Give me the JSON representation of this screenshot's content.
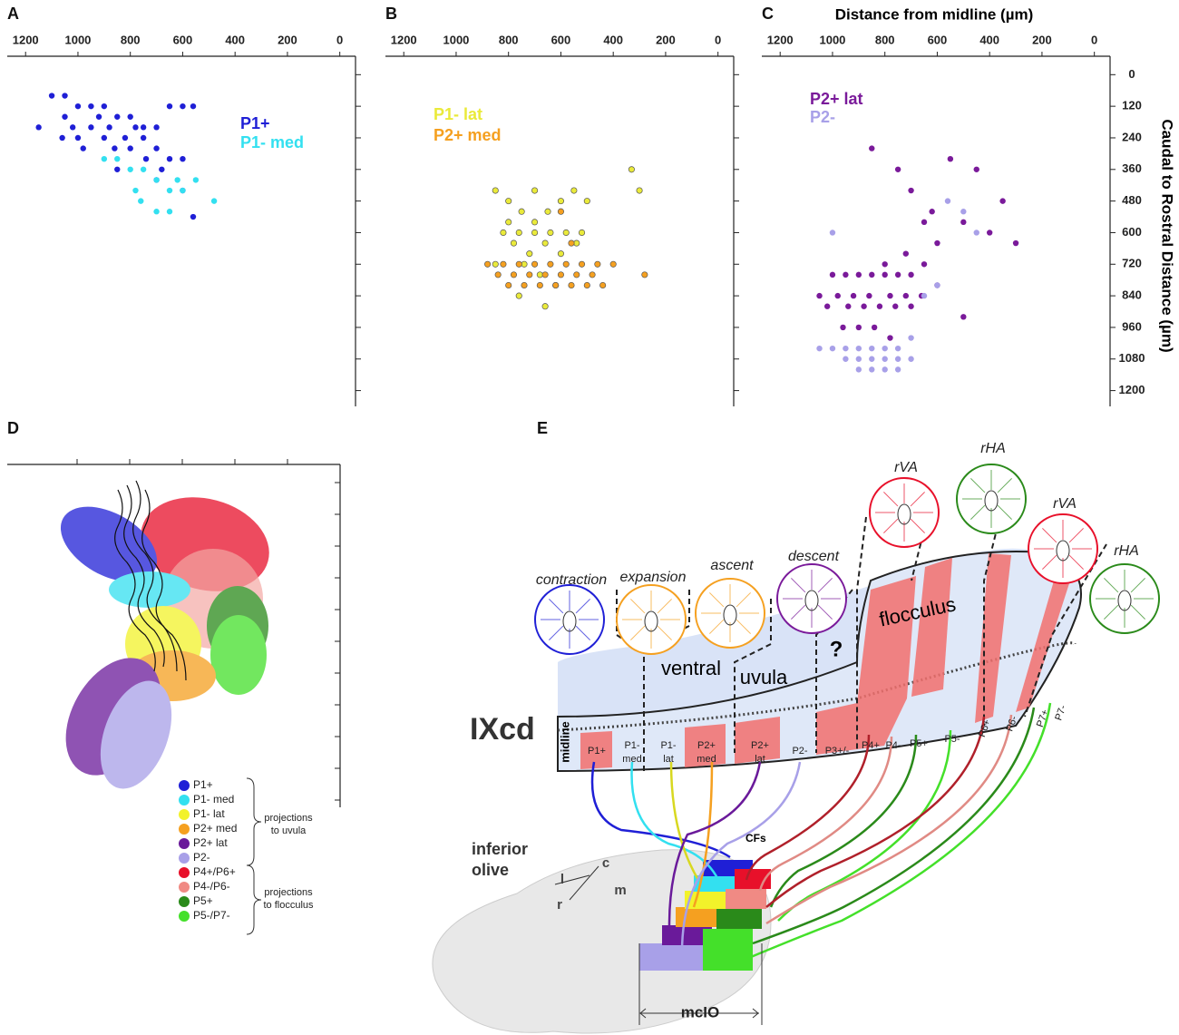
{
  "chart_data": [
    {
      "type": "scatter",
      "panel": "A",
      "xlim": [
        1270,
        -60
      ],
      "ylim": [
        -70,
        1260
      ],
      "xticks": [
        1200,
        1000,
        800,
        600,
        400,
        200,
        0
      ],
      "yticks": [
        0,
        120,
        240,
        360,
        480,
        600,
        720,
        840,
        960,
        1080,
        1200
      ],
      "ytick_labels": false,
      "series": [
        {
          "name": "P1+",
          "color": "#1f1fd6",
          "x": [
            1100,
            1050,
            1000,
            950,
            900,
            850,
            800,
            750,
            700,
            650,
            600,
            560,
            1150,
            1000,
            900,
            800,
            700,
            650,
            600,
            850,
            700,
            600,
            560,
            1050,
            950,
            750,
            1020,
            920,
            880,
            820,
            780,
            1060,
            980,
            860,
            740,
            680
          ],
          "y": [
            80,
            80,
            120,
            120,
            120,
            160,
            160,
            200,
            200,
            120,
            120,
            120,
            200,
            240,
            240,
            280,
            280,
            320,
            320,
            360,
            400,
            440,
            540,
            160,
            200,
            240,
            200,
            160,
            200,
            240,
            200,
            240,
            280,
            280,
            320,
            360
          ]
        },
        {
          "name": "P1- med",
          "color": "#33e0f0",
          "x": [
            850,
            800,
            750,
            700,
            650,
            600,
            760,
            700,
            650,
            480,
            550,
            900,
            780,
            620
          ],
          "y": [
            320,
            360,
            360,
            400,
            440,
            440,
            480,
            520,
            520,
            480,
            400,
            320,
            440,
            400
          ]
        }
      ]
    },
    {
      "type": "scatter",
      "panel": "B",
      "xlim": [
        1270,
        -60
      ],
      "ylim": [
        -70,
        1260
      ],
      "xticks": [
        1200,
        1000,
        800,
        600,
        400,
        200,
        0
      ],
      "yticks": [
        0,
        120,
        240,
        360,
        480,
        600,
        720,
        840,
        960,
        1080,
        1200
      ],
      "ytick_labels": false,
      "series": [
        {
          "name": "P1- lat",
          "color": "#eaea3a",
          "x": [
            850,
            800,
            750,
            700,
            650,
            600,
            550,
            500,
            330,
            300,
            820,
            760,
            700,
            640,
            580,
            520,
            780,
            720,
            660,
            600,
            540,
            850,
            740,
            680,
            620,
            800,
            700,
            760,
            660
          ],
          "y": [
            440,
            480,
            520,
            560,
            520,
            480,
            440,
            480,
            360,
            440,
            600,
            600,
            600,
            600,
            600,
            600,
            640,
            680,
            640,
            680,
            640,
            720,
            720,
            760,
            800,
            560,
            440,
            840,
            880
          ]
        },
        {
          "name": "P2+ med",
          "color": "#f5a020",
          "x": [
            880,
            820,
            760,
            700,
            640,
            580,
            520,
            460,
            400,
            280,
            840,
            780,
            720,
            660,
            600,
            540,
            480,
            800,
            740,
            680,
            620,
            560,
            500,
            440,
            600,
            560
          ],
          "y": [
            720,
            720,
            720,
            720,
            720,
            720,
            720,
            720,
            720,
            760,
            760,
            760,
            760,
            760,
            760,
            760,
            760,
            800,
            800,
            800,
            800,
            800,
            800,
            800,
            520,
            640
          ]
        }
      ]
    },
    {
      "type": "scatter",
      "panel": "C",
      "title": "Distance from midline (µm)",
      "y_label": "Caudal to Rostral Distance (µm)",
      "xlim": [
        1270,
        -60
      ],
      "ylim": [
        -70,
        1260
      ],
      "xticks": [
        1200,
        1000,
        800,
        600,
        400,
        200,
        0
      ],
      "yticks": [
        0,
        120,
        240,
        360,
        480,
        600,
        720,
        840,
        960,
        1080,
        1200
      ],
      "ytick_labels": true,
      "series": [
        {
          "name": "P2+ lat",
          "color": "#7a1a9a",
          "x": [
            850,
            750,
            550,
            450,
            700,
            650,
            600,
            500,
            400,
            300,
            350,
            620,
            720,
            800,
            1000,
            950,
            900,
            850,
            800,
            750,
            700,
            650,
            1050,
            980,
            920,
            860,
            780,
            720,
            660,
            600,
            1020,
            940,
            880,
            820,
            760,
            700,
            500,
            960,
            900,
            840,
            780
          ],
          "y": [
            280,
            360,
            320,
            360,
            440,
            560,
            640,
            560,
            600,
            640,
            480,
            520,
            680,
            720,
            760,
            760,
            760,
            760,
            760,
            760,
            760,
            720,
            840,
            840,
            840,
            840,
            840,
            840,
            840,
            800,
            880,
            880,
            880,
            880,
            880,
            880,
            920,
            960,
            960,
            960,
            1000
          ]
        },
        {
          "name": "P2-",
          "color": "#a8a0e8",
          "x": [
            1050,
            1000,
            950,
            900,
            850,
            800,
            750,
            700,
            950,
            900,
            850,
            800,
            750,
            700,
            900,
            850,
            800,
            750,
            560,
            500,
            450,
            1000,
            650,
            600
          ],
          "y": [
            1040,
            1040,
            1040,
            1040,
            1040,
            1040,
            1040,
            1000,
            1080,
            1080,
            1080,
            1080,
            1080,
            1080,
            1120,
            1120,
            1120,
            1120,
            480,
            520,
            600,
            600,
            840,
            800
          ]
        }
      ]
    }
  ],
  "panel_d": {
    "label": "D",
    "legend": [
      {
        "name": "P1+",
        "color": "#1f1fd6"
      },
      {
        "name": "P1- med",
        "color": "#33e0f0"
      },
      {
        "name": "P1- lat",
        "color": "#f2f22a"
      },
      {
        "name": "P2+ med",
        "color": "#f5a020"
      },
      {
        "name": "P2+ lat",
        "color": "#6a1a9a"
      },
      {
        "name": "P2-",
        "color": "#a8a0e8"
      },
      {
        "name": "P4+/P6+",
        "color": "#e8102a"
      },
      {
        "name": "P4-/P6-",
        "color": "#f08a84"
      },
      {
        "name": "P5+",
        "color": "#2a8a1a"
      },
      {
        "name": "P5-/P7-",
        "color": "#44e02a"
      }
    ],
    "brace_uvula": [
      "projections",
      "to uvula"
    ],
    "brace_flocculus": [
      "projections",
      "to flocculus"
    ]
  },
  "panel_e": {
    "label": "E",
    "region": "IXcd",
    "midline": "midline",
    "olive": [
      "inferior",
      "olive"
    ],
    "dirs": [
      "c",
      "l",
      "m",
      "r"
    ],
    "cfs": "CFs",
    "mcio": "mcIO",
    "question": "?",
    "ventral": "ventral",
    "uvula": "uvula",
    "flocculus": "flocculus",
    "stimuli": [
      "contraction",
      "expansion",
      "ascent",
      "descent",
      "rVA",
      "rHA",
      "rVA",
      "rHA"
    ],
    "zones": [
      [
        "P1+"
      ],
      [
        "P1-",
        "med"
      ],
      [
        "P1-",
        "lat"
      ],
      [
        "P2+",
        "med"
      ],
      [
        "P2+",
        "lat"
      ],
      [
        "P2-"
      ],
      [
        "P3+/-"
      ],
      [
        "P4+"
      ],
      [
        "P4-"
      ],
      [
        "P5+"
      ],
      [
        "P5-"
      ],
      [
        "P6+"
      ],
      [
        "P6-"
      ],
      [
        "P7+"
      ],
      [
        "P7-"
      ]
    ]
  }
}
